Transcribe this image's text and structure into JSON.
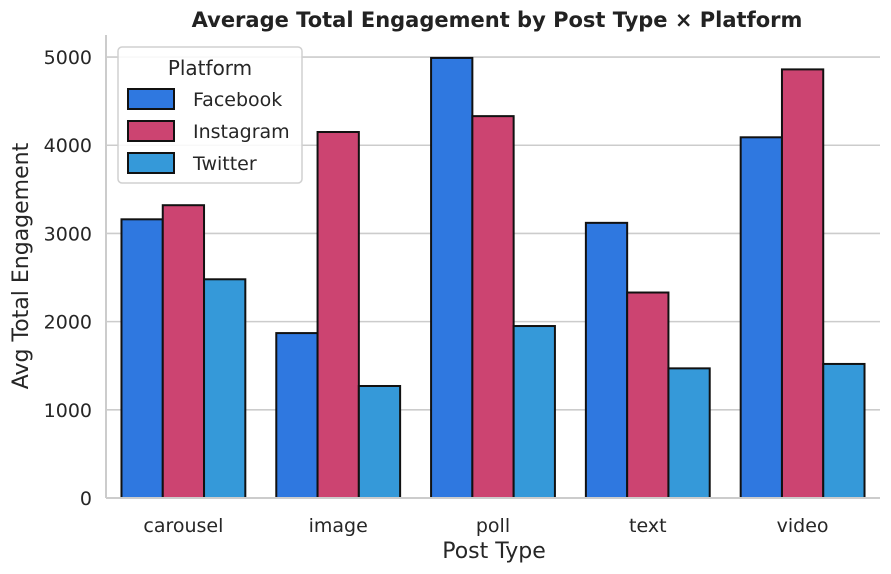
{
  "chart_data": {
    "type": "bar",
    "title": "Average Total Engagement by Post Type × Platform",
    "xlabel": "Post Type",
    "ylabel": "Avg Total Engagement",
    "categories": [
      "carousel",
      "image",
      "poll",
      "text",
      "video"
    ],
    "ylim": [
      0,
      5250
    ],
    "yticks": [
      0,
      1000,
      2000,
      3000,
      4000,
      5000
    ],
    "grid": "horizontal",
    "legend": {
      "title": "Platform",
      "position": "top-left"
    },
    "series": [
      {
        "name": "Facebook",
        "color": "#2f78e0",
        "values": [
          3160,
          1870,
          4990,
          3120,
          4090
        ]
      },
      {
        "name": "Instagram",
        "color": "#cc4471",
        "values": [
          3320,
          4150,
          4330,
          2330,
          4860
        ]
      },
      {
        "name": "Twitter",
        "color": "#3599d9",
        "values": [
          2480,
          1270,
          1950,
          1470,
          1520
        ]
      }
    ]
  }
}
